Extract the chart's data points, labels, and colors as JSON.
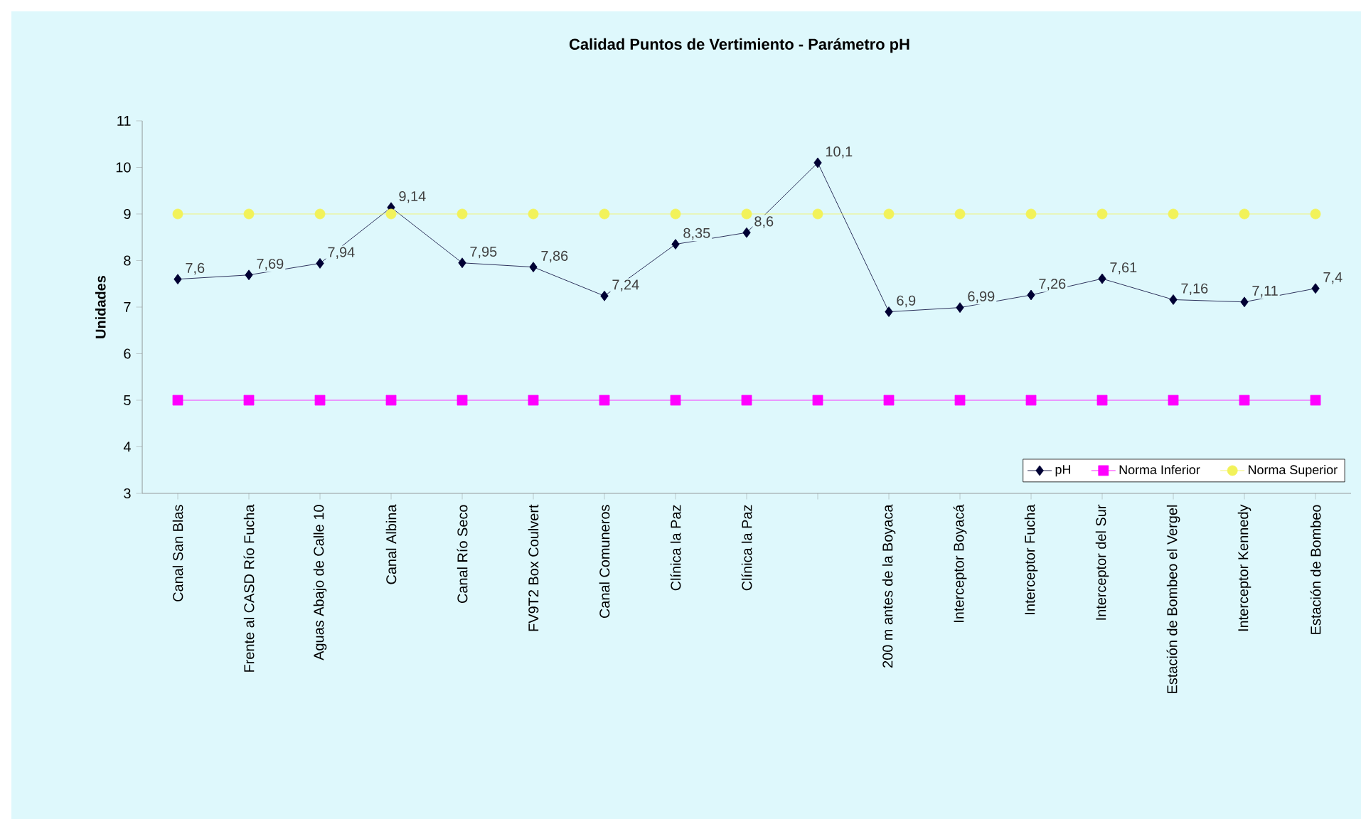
{
  "chart_data": {
    "type": "line",
    "title": "Calidad Puntos de Vertimiento  - Parámetro  pH",
    "ylabel": "Unidades",
    "categories": [
      "Canal San Blas",
      "Frente al CASD Río Fucha",
      "Aguas Abajo de Calle 10",
      "Canal Albina",
      "Canal Río Seco",
      "FV9T2 Box Coulvert",
      "Canal Comuneros",
      "Clínica la Paz",
      "Clínica la Paz",
      null,
      "200 m antes de la Boyaca",
      "Interceptor Boyacá",
      "Interceptor Fucha",
      "Interceptor del Sur",
      "Estación de Bombeo el Vergel",
      "Interceptor Kennedy",
      "Estación de Bombeo"
    ],
    "series": [
      {
        "name": "pH",
        "color": "#000033",
        "marker": "diamond",
        "values": [
          7.6,
          7.69,
          7.94,
          9.14,
          7.95,
          7.86,
          7.24,
          8.35,
          8.6,
          10.1,
          6.9,
          6.99,
          7.26,
          7.61,
          7.16,
          7.11,
          7.4
        ],
        "value_labels": [
          "7,6",
          "7,69",
          "7,94",
          "9,14",
          "7,95",
          "7,86",
          "7,24",
          "8,35",
          "8,6",
          "10,1",
          "6,9",
          "6,99",
          "7,26",
          "7,61",
          "7,16",
          "7,11",
          "7,4"
        ]
      },
      {
        "name": "Norma Inferior",
        "color": "#ff00ff",
        "marker": "square",
        "values": [
          5,
          5,
          5,
          5,
          5,
          5,
          5,
          5,
          5,
          5,
          5,
          5,
          5,
          5,
          5,
          5,
          5
        ]
      },
      {
        "name": "Norma Superior",
        "color": "#f2f25a",
        "marker": "circle",
        "values": [
          9,
          9,
          9,
          9,
          9,
          9,
          9,
          9,
          9,
          9,
          9,
          9,
          9,
          9,
          9,
          9,
          9
        ]
      }
    ],
    "ylim": [
      3,
      11
    ],
    "yticks": [
      3,
      4,
      5,
      6,
      7,
      8,
      9,
      10,
      11
    ],
    "grid": false,
    "legend": "bottom right"
  }
}
